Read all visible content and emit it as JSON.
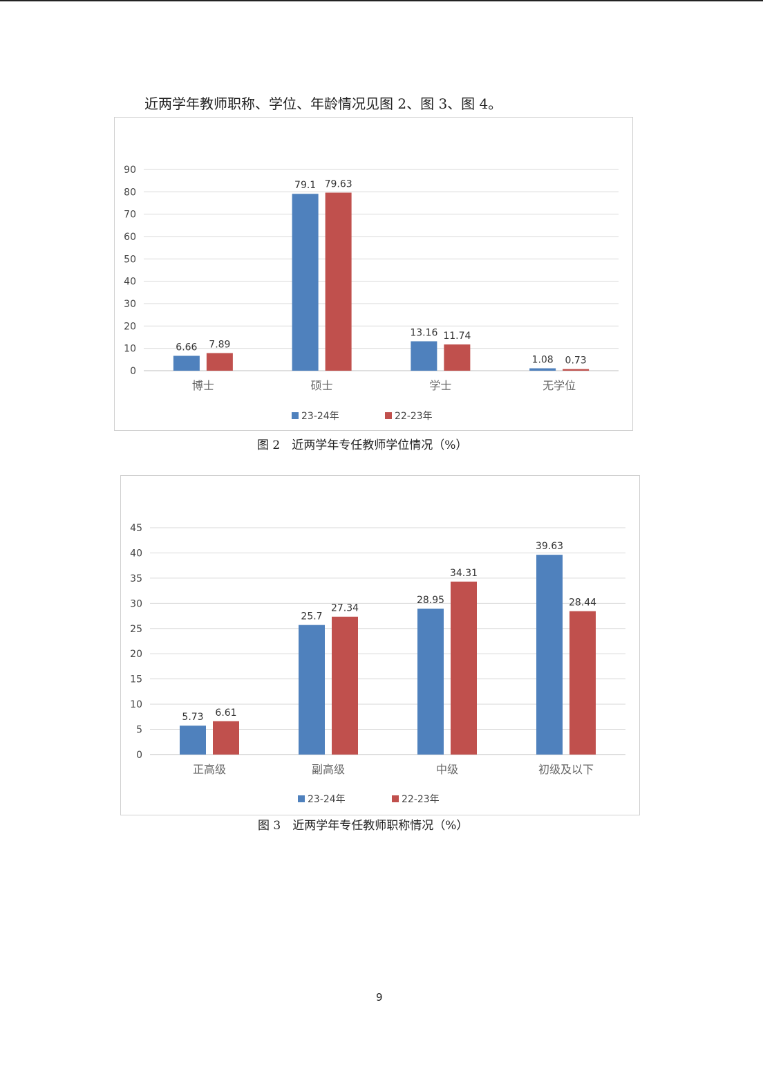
{
  "intro_text": "近两学年教师职称、学位、年龄情况见图 2、图 3、图 4。",
  "colors": {
    "series1": "#4F81BD",
    "series2": "#C0504D",
    "grid": "#d9d9d9",
    "axis": "#bfbfbf"
  },
  "chart_data": [
    {
      "type": "bar",
      "categories": [
        "博士",
        "硕士",
        "学士",
        "无学位"
      ],
      "series": [
        {
          "name": "23-24年",
          "values": [
            6.66,
            79.1,
            13.16,
            1.08
          ]
        },
        {
          "name": "22-23年",
          "values": [
            7.89,
            79.63,
            11.74,
            0.73
          ]
        }
      ],
      "ylim": [
        0,
        90
      ],
      "yticks": [
        0,
        10,
        20,
        30,
        40,
        50,
        60,
        70,
        80,
        90
      ],
      "grid": true,
      "legend": "bottom",
      "caption": "图 2　近两学年专任教师学位情况（%）"
    },
    {
      "type": "bar",
      "categories": [
        "正高级",
        "副高级",
        "中级",
        "初级及以下"
      ],
      "series": [
        {
          "name": "23-24年",
          "values": [
            5.73,
            25.7,
            28.95,
            39.63
          ]
        },
        {
          "name": "22-23年",
          "values": [
            6.61,
            27.34,
            34.31,
            28.44
          ]
        }
      ],
      "ylim": [
        0,
        45
      ],
      "yticks": [
        0,
        5,
        10,
        15,
        20,
        25,
        30,
        35,
        40,
        45
      ],
      "grid": true,
      "legend": "bottom",
      "caption": "图 3　近两学年专任教师职称情况（%）"
    }
  ],
  "page_number": "9"
}
